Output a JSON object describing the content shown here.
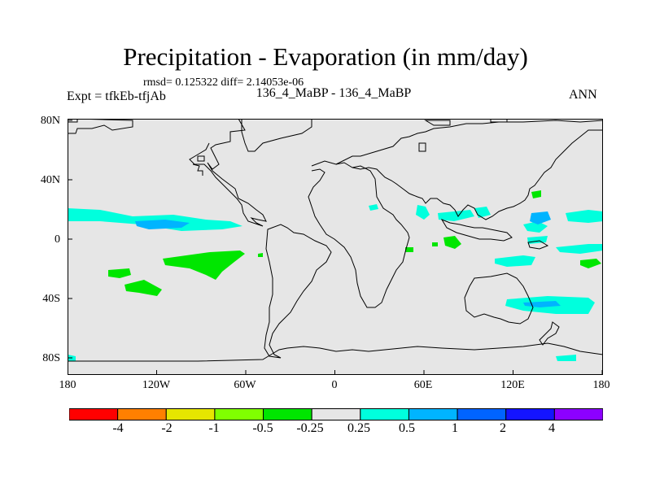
{
  "figure": {
    "title": "Precipitation - Evaporation (in mm/day)",
    "stats": "rmsd= 0.125322 diff= 2.14053e-06",
    "experiment": "Expt = tfkEb-tfjAb",
    "runs": "136_4_MaBP - 136_4_MaBP",
    "season": "ANN"
  },
  "axes": {
    "y_ticks": [
      "80N",
      "40N",
      "0",
      "40S",
      "80S"
    ],
    "x_ticks": [
      "180",
      "120W",
      "60W",
      "0",
      "60E",
      "120E",
      "180"
    ]
  },
  "colorbar": {
    "colors": [
      "#ff0000",
      "#ff8000",
      "#e6e600",
      "#80ff00",
      "#00e600",
      "#e6e6e6",
      "#00ffdd",
      "#00b4ff",
      "#0064ff",
      "#1414ff",
      "#8c00ff"
    ],
    "labels": [
      "-4",
      "-2",
      "-1",
      "-0.5",
      "-0.25",
      "0.25",
      "0.5",
      "1",
      "2",
      "4"
    ]
  },
  "colors": {
    "background": "#e6e6e6",
    "coast": "#000000"
  }
}
